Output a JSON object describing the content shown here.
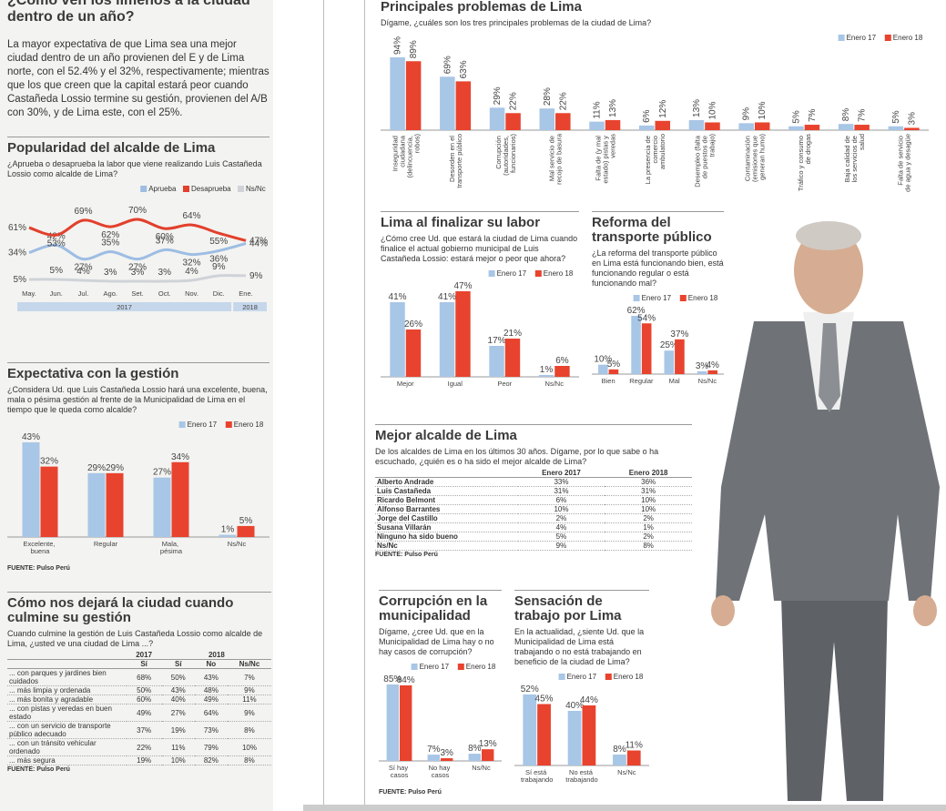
{
  "intro": {
    "title": "¿Cómo ven los limeños a la ciudad dentro de un año?",
    "text": "La mayor expectativa de que Lima sea una mejor ciudad dentro de un año provienen del E y de Lima norte, con el 52.4% y el 32%, respectivamente; mientras que los que creen que la capital estará peor cuando Castañeda Lossio termine su gestión, provienen del A/B con 30%, y de Lima este, con el 25%."
  },
  "chart_data": [
    {
      "type": "line",
      "title": "Popularidad del alcalde de Lima",
      "subtitle": "¿Aprueba o desaprueba la labor que viene realizando Luis Castañeda Lossio como alcalde de Lima?",
      "categories": [
        "May.",
        "Jun.",
        "Jul.",
        "Ago.",
        "Set.",
        "Oct.",
        "Nov.",
        "Dic.",
        "Ene."
      ],
      "periods": [
        "2017",
        "2018"
      ],
      "series": [
        {
          "name": "Aprueba",
          "color": "#9dbde3",
          "values": [
            34,
            42,
            27,
            35,
            27,
            37,
            32,
            36,
            44
          ],
          "value_labels": [
            "34%",
            "42%",
            "27%",
            "35%",
            "27%",
            "37%",
            "32%",
            "36%",
            "44%"
          ]
        },
        {
          "name": "Desaprueba",
          "color": "#e2402c",
          "values": [
            61,
            53,
            69,
            62,
            70,
            60,
            64,
            55,
            47
          ],
          "value_labels": [
            "61%",
            "53%",
            "69%",
            "62%",
            "70%",
            "60%",
            "64%",
            "55%",
            "47%"
          ]
        },
        {
          "name": "Ns/Nc",
          "color": "#cfd3d8",
          "values": [
            5,
            5,
            4,
            3,
            3,
            3,
            4,
            9,
            9
          ],
          "value_labels": [
            "5%",
            "5%",
            "4%",
            "3%",
            "3%",
            "3%",
            "4%",
            "9%",
            "9%"
          ]
        }
      ]
    },
    {
      "type": "bar",
      "title": "Expectativa con la gestión",
      "subtitle": "¿Considera Ud. que Luis Castañeda Lossio hará una excelente, buena, mala o pésima gestión al frente de la Municipalidad de Lima en el tiempo que le queda como alcalde?",
      "categories": [
        "Excelente, buena",
        "Regular",
        "Mala, pésima",
        "Ns/Nc"
      ],
      "series": [
        {
          "name": "Enero 17",
          "color": "#a8c6e6",
          "values": [
            43,
            29,
            27,
            1
          ],
          "value_labels": [
            "43%",
            "29%",
            "27%",
            "1%"
          ]
        },
        {
          "name": "Enero 18",
          "color": "#e8432e",
          "values": [
            32,
            29,
            34,
            5
          ],
          "value_labels": [
            "32%",
            "29%",
            "34%",
            "5%"
          ]
        }
      ],
      "source": "FUENTE: Pulso Perú"
    },
    {
      "type": "bar",
      "title": "Principales problemas de Lima",
      "subtitle": "Dígame, ¿cuáles son los tres principales problemas de la ciudad de Lima?",
      "categories": [
        "Inseguridad ciudadana (delincuencia, robos)",
        "Desorden en el transporte público",
        "Corrupción (autoridades, funcionarios)",
        "Mal servicio de recojo de basura",
        "Falta de (y mal estado) pistas y veredas",
        "La presencia de comercio ambulatorio",
        "Desempleo (falta de puestos de trabajo)",
        "Contaminación (emisiones que generan humo)",
        "Tráfico y consumo de drogas",
        "Baja calidad de los servicios de salud",
        "Falta de servicio de agua y desagüe"
      ],
      "series": [
        {
          "name": "Enero 17",
          "color": "#a8c6e6",
          "values": [
            94,
            69,
            29,
            28,
            11,
            6,
            13,
            9,
            5,
            8,
            5
          ],
          "value_labels": [
            "94%",
            "69%",
            "29%",
            "28%",
            "11%",
            "6%",
            "13%",
            "9%",
            "5%",
            "8%",
            "5%"
          ]
        },
        {
          "name": "Enero 18",
          "color": "#e8432e",
          "values": [
            89,
            63,
            22,
            22,
            13,
            12,
            10,
            10,
            7,
            7,
            3
          ],
          "value_labels": [
            "89%",
            "63%",
            "22%",
            "22%",
            "13%",
            "12%",
            "10%",
            "10%",
            "7%",
            "7%",
            "3%"
          ]
        }
      ]
    },
    {
      "type": "bar",
      "title": "Lima al finalizar su labor",
      "subtitle": "¿Cómo cree Ud. que estará la ciudad de Lima cuando finalice el actual gobierno municipal de Luis Castañeda Lossio: estará mejor o peor que ahora?",
      "categories": [
        "Mejor",
        "Igual",
        "Peor",
        "Ns/Nc"
      ],
      "series": [
        {
          "name": "Enero 17",
          "color": "#a8c6e6",
          "values": [
            41,
            41,
            17,
            1
          ],
          "value_labels": [
            "41%",
            "41%",
            "17%",
            "1%"
          ]
        },
        {
          "name": "Enero 18",
          "color": "#e8432e",
          "values": [
            26,
            47,
            21,
            6
          ],
          "value_labels": [
            "26%",
            "47%",
            "21%",
            "6%"
          ]
        }
      ]
    },
    {
      "type": "bar",
      "title": "Reforma del transporte público",
      "subtitle": "¿La reforma del transporte público en Lima está funcionando bien, está funcionando regular o está funcionando mal?",
      "categories": [
        "Bien",
        "Regular",
        "Mal",
        "Ns/Nc"
      ],
      "series": [
        {
          "name": "Enero 17",
          "color": "#a8c6e6",
          "values": [
            10,
            62,
            25,
            3
          ],
          "value_labels": [
            "10%",
            "62%",
            "25%",
            "3%"
          ]
        },
        {
          "name": "Enero 18",
          "color": "#e8432e",
          "values": [
            5,
            54,
            37,
            4
          ],
          "value_labels": [
            "5%",
            "54%",
            "37%",
            "4%"
          ]
        }
      ]
    },
    {
      "type": "bar",
      "title": "Corrupción en la municipalidad",
      "subtitle": "Dígame, ¿cree Ud. que en la Municipalidad de Lima hay o no hay casos de corrupción?",
      "categories": [
        "Sí hay casos",
        "No hay casos",
        "Ns/Nc"
      ],
      "series": [
        {
          "name": "Enero 17",
          "color": "#a8c6e6",
          "values": [
            85,
            7,
            8
          ],
          "value_labels": [
            "85%",
            "7%",
            "8%"
          ]
        },
        {
          "name": "Enero 18",
          "color": "#e8432e",
          "values": [
            84,
            3,
            13
          ],
          "value_labels": [
            "84%",
            "3%",
            "13%"
          ]
        }
      ],
      "source": "FUENTE: Pulso Perú"
    },
    {
      "type": "bar",
      "title": "Sensación de trabajo por Lima",
      "subtitle": "En la actualidad, ¿siente Ud. que la Municipalidad de Lima está trabajando o no está trabajando en beneficio de la ciudad de Lima?",
      "categories": [
        "Sí está trabajando",
        "No está trabajando",
        "Ns/Nc"
      ],
      "series": [
        {
          "name": "Enero 17",
          "color": "#a8c6e6",
          "values": [
            52,
            40,
            8
          ],
          "value_labels": [
            "52%",
            "40%",
            "8%"
          ]
        },
        {
          "name": "Enero 18",
          "color": "#e8432e",
          "values": [
            45,
            44,
            11
          ],
          "value_labels": [
            "45%",
            "44%",
            "11%"
          ]
        }
      ]
    }
  ],
  "tables": [
    {
      "title": "Cómo nos dejará la ciudad cuando culmine su gestión",
      "subtitle": "Cuando culmine la gestión de Luis Castañeda Lossio como alcalde de Lima, ¿usted ve una ciudad de Lima ...?",
      "column_groups": [
        "2017",
        "2018"
      ],
      "columns": [
        "Sí",
        "Sí",
        "No",
        "Ns/Nc"
      ],
      "rows": [
        [
          "... con parques y jardines bien cuidados",
          "68%",
          "50%",
          "43%",
          "7%"
        ],
        [
          "... más limpia y ordenada",
          "50%",
          "43%",
          "48%",
          "9%"
        ],
        [
          "... más bonita y agradable",
          "60%",
          "40%",
          "49%",
          "11%"
        ],
        [
          "... con pistas y veredas en buen estado",
          "49%",
          "27%",
          "64%",
          "9%"
        ],
        [
          "... con un servicio de transporte público adecuado",
          "37%",
          "19%",
          "73%",
          "8%"
        ],
        [
          "... con un tránsito vehicular ordenado",
          "22%",
          "11%",
          "79%",
          "10%"
        ],
        [
          "... más segura",
          "19%",
          "10%",
          "82%",
          "8%"
        ]
      ],
      "source": "FUENTE: Pulso Perú"
    },
    {
      "title": "Mejor alcalde de Lima",
      "subtitle": "De los alcaldes de Lima en los últimos 30 años. Dígame, por lo que sabe o ha escuchado, ¿quién es o ha sido el mejor alcalde de Lima?",
      "columns": [
        "Enero 2017",
        "Enero 2018"
      ],
      "rows": [
        [
          "Alberto Andrade",
          "33%",
          "36%"
        ],
        [
          "Luis Castañeda",
          "31%",
          "31%"
        ],
        [
          "Ricardo Belmont",
          "6%",
          "10%"
        ],
        [
          "Alfonso Barrantes",
          "10%",
          "10%"
        ],
        [
          "Jorge del Castillo",
          "2%",
          "2%"
        ],
        [
          "Susana Villarán",
          "4%",
          "1%"
        ],
        [
          "Ninguno ha sido bueno",
          "5%",
          "2%"
        ],
        [
          "Ns/Nc",
          "9%",
          "8%"
        ]
      ],
      "source": "FUENTE: Pulso Perú"
    }
  ]
}
